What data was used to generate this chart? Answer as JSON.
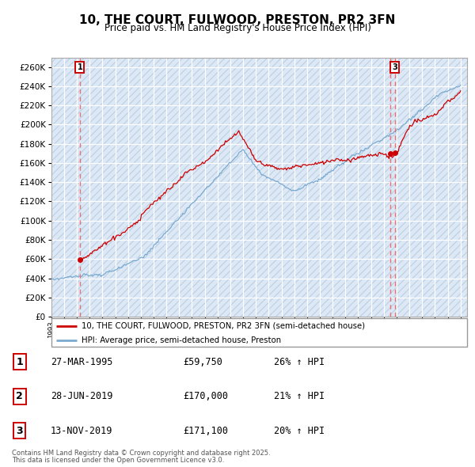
{
  "title": "10, THE COURT, FULWOOD, PRESTON, PR2 3FN",
  "subtitle": "Price paid vs. HM Land Registry's House Price Index (HPI)",
  "ylim": [
    0,
    270000
  ],
  "yticks": [
    0,
    20000,
    40000,
    60000,
    80000,
    100000,
    120000,
    140000,
    160000,
    180000,
    200000,
    220000,
    240000,
    260000
  ],
  "xmin": 1993.0,
  "xmax": 2025.5,
  "background_color": "#dce8f5",
  "hatch_color": "#b8ccdf",
  "red_color": "#cc0000",
  "blue_color": "#7aaad0",
  "dashed_line_color": "#ee6666",
  "legend_entry1": "10, THE COURT, FULWOOD, PRESTON, PR2 3FN (semi-detached house)",
  "legend_entry2": "HPI: Average price, semi-detached house, Preston",
  "transactions": [
    {
      "num": 1,
      "date": "27-MAR-1995",
      "price": "£59,750",
      "hpi": "26% ↑ HPI",
      "x_year": 1995.23,
      "y": 59750
    },
    {
      "num": 2,
      "date": "28-JUN-2019",
      "price": "£170,000",
      "hpi": "21% ↑ HPI",
      "x_year": 2019.49,
      "y": 170000
    },
    {
      "num": 3,
      "date": "13-NOV-2019",
      "price": "£171,100",
      "hpi": "20% ↑ HPI",
      "x_year": 2019.87,
      "y": 171100
    }
  ],
  "footnote1": "Contains HM Land Registry data © Crown copyright and database right 2025.",
  "footnote2": "This data is licensed under the Open Government Licence v3.0."
}
